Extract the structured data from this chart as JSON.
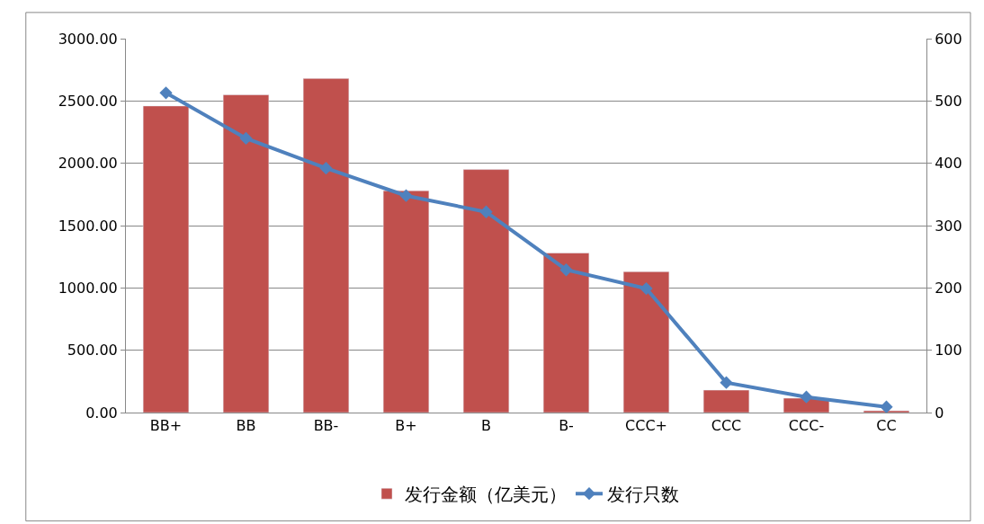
{
  "chart_data": {
    "type": "bar",
    "categories": [
      "BB+",
      "BB",
      "BB-",
      "B+",
      "B",
      "B-",
      "CCC+",
      "CCC",
      "CCC-",
      "CC"
    ],
    "series": [
      {
        "name": "发行金额（亿美元）",
        "color": "#c0504d",
        "values": [
          2460,
          2550,
          2680,
          1780,
          1950,
          1280,
          1130,
          180,
          115,
          15
        ]
      },
      {
        "name": "发行只数",
        "type": "line",
        "axis": "y2",
        "color": "#4f81bd",
        "marker": "diamond",
        "values": [
          513,
          440,
          392,
          348,
          322,
          229,
          199,
          48,
          25,
          9
        ]
      }
    ],
    "ylim": [
      0,
      3000
    ],
    "yticks": [
      {
        "value": 0,
        "label": "0.00"
      },
      {
        "value": 500,
        "label": "500.00"
      },
      {
        "value": 1000,
        "label": "1000.00"
      },
      {
        "value": 1500,
        "label": "1500.00"
      },
      {
        "value": 2000,
        "label": "2000.00"
      },
      {
        "value": 2500,
        "label": "2500.00"
      },
      {
        "value": 3000,
        "label": "3000.00"
      }
    ],
    "y2lim": [
      0,
      600
    ],
    "y2ticks": [
      0,
      100,
      200,
      300,
      400,
      500,
      600
    ],
    "grid": "y",
    "legend": "bottom"
  }
}
